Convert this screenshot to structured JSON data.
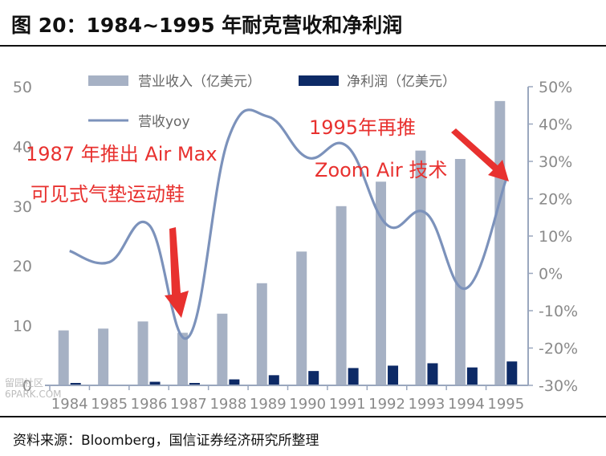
{
  "title": "图 20：1984~1995 年耐克营收和净利润",
  "source": "资料来源：Bloomberg，国信证券经济研究所整理",
  "watermark": {
    "line1": "留园社区",
    "line2": "6PARK.COM"
  },
  "colors": {
    "revenue": "#a6b1c4",
    "net_profit": "#0d2a66",
    "yoy": "#7c92bb",
    "annotation": "#e8312f",
    "axis_text": "#8a8a8a"
  },
  "chart_data": {
    "type": "bar",
    "title": "1984~1995 年耐克营收和净利润",
    "categories": [
      "1984",
      "1985",
      "1986",
      "1987",
      "1988",
      "1989",
      "1990",
      "1991",
      "1992",
      "1993",
      "1994",
      "1995"
    ],
    "series": [
      {
        "name": "营业收入（亿美元）",
        "type": "bar",
        "axis": "left",
        "values": [
          9.2,
          9.5,
          10.7,
          8.8,
          12.0,
          17.1,
          22.4,
          30.0,
          34.1,
          39.3,
          37.9,
          47.6
        ]
      },
      {
        "name": "净利润（亿美元）",
        "type": "bar",
        "axis": "left",
        "values": [
          0.4,
          0.1,
          0.6,
          0.4,
          1.0,
          1.7,
          2.4,
          2.9,
          3.3,
          3.7,
          3.0,
          4.0
        ]
      },
      {
        "name": "营收yoy",
        "type": "line",
        "axis": "right",
        "values": [
          6,
          3,
          13,
          -17,
          36,
          42,
          31,
          34,
          13,
          16,
          -4,
          25
        ]
      }
    ],
    "y_left": {
      "min": 0,
      "max": 50,
      "ticks": [
        "0",
        "10",
        "20",
        "30",
        "40",
        "50"
      ]
    },
    "y_right": {
      "min": -30,
      "max": 50,
      "ticks": [
        "-30%",
        "-20%",
        "-10%",
        "0%",
        "10%",
        "20%",
        "30%",
        "40%",
        "50%"
      ]
    },
    "grid": false,
    "legend": "top",
    "annotations": [
      {
        "lines": [
          "1987 年推出 Air Max",
          "可见式气垫运动鞋"
        ],
        "points_to": "1987"
      },
      {
        "lines": [
          "1995年再推",
          "Zoom Air 技术"
        ],
        "points_to": "1995"
      }
    ]
  }
}
